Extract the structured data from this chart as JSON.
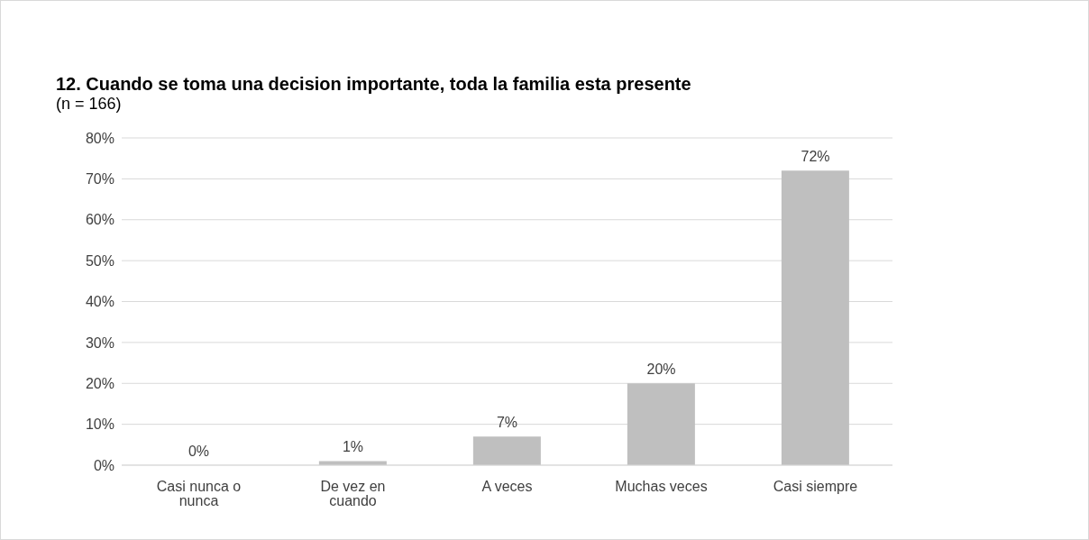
{
  "chart_data": {
    "type": "bar",
    "title": "12. Cuando se toma una decision importante, toda la familia esta presente",
    "subtitle": "(n = 166)",
    "categories": [
      "Casi nunca o nunca",
      "De vez en cuando",
      "A veces",
      "Muchas veces",
      "Casi siempre"
    ],
    "values": [
      0,
      1,
      7,
      20,
      72
    ],
    "color": "#bfbfbf",
    "ylim": [
      0,
      80
    ],
    "yticks": [
      {
        "value": 0,
        "label": "0%"
      },
      {
        "value": 10,
        "label": "10%"
      },
      {
        "value": 20,
        "label": "20%"
      },
      {
        "value": 30,
        "label": "30%"
      },
      {
        "value": 40,
        "label": "40%"
      },
      {
        "value": 50,
        "label": "50%"
      },
      {
        "value": 60,
        "label": "60%"
      },
      {
        "value": 70,
        "label": "70%"
      },
      {
        "value": 80,
        "label": "80%"
      }
    ],
    "value_labels": [
      "0%",
      "1%",
      "7%",
      "20%",
      "72%"
    ],
    "grid": "y"
  }
}
